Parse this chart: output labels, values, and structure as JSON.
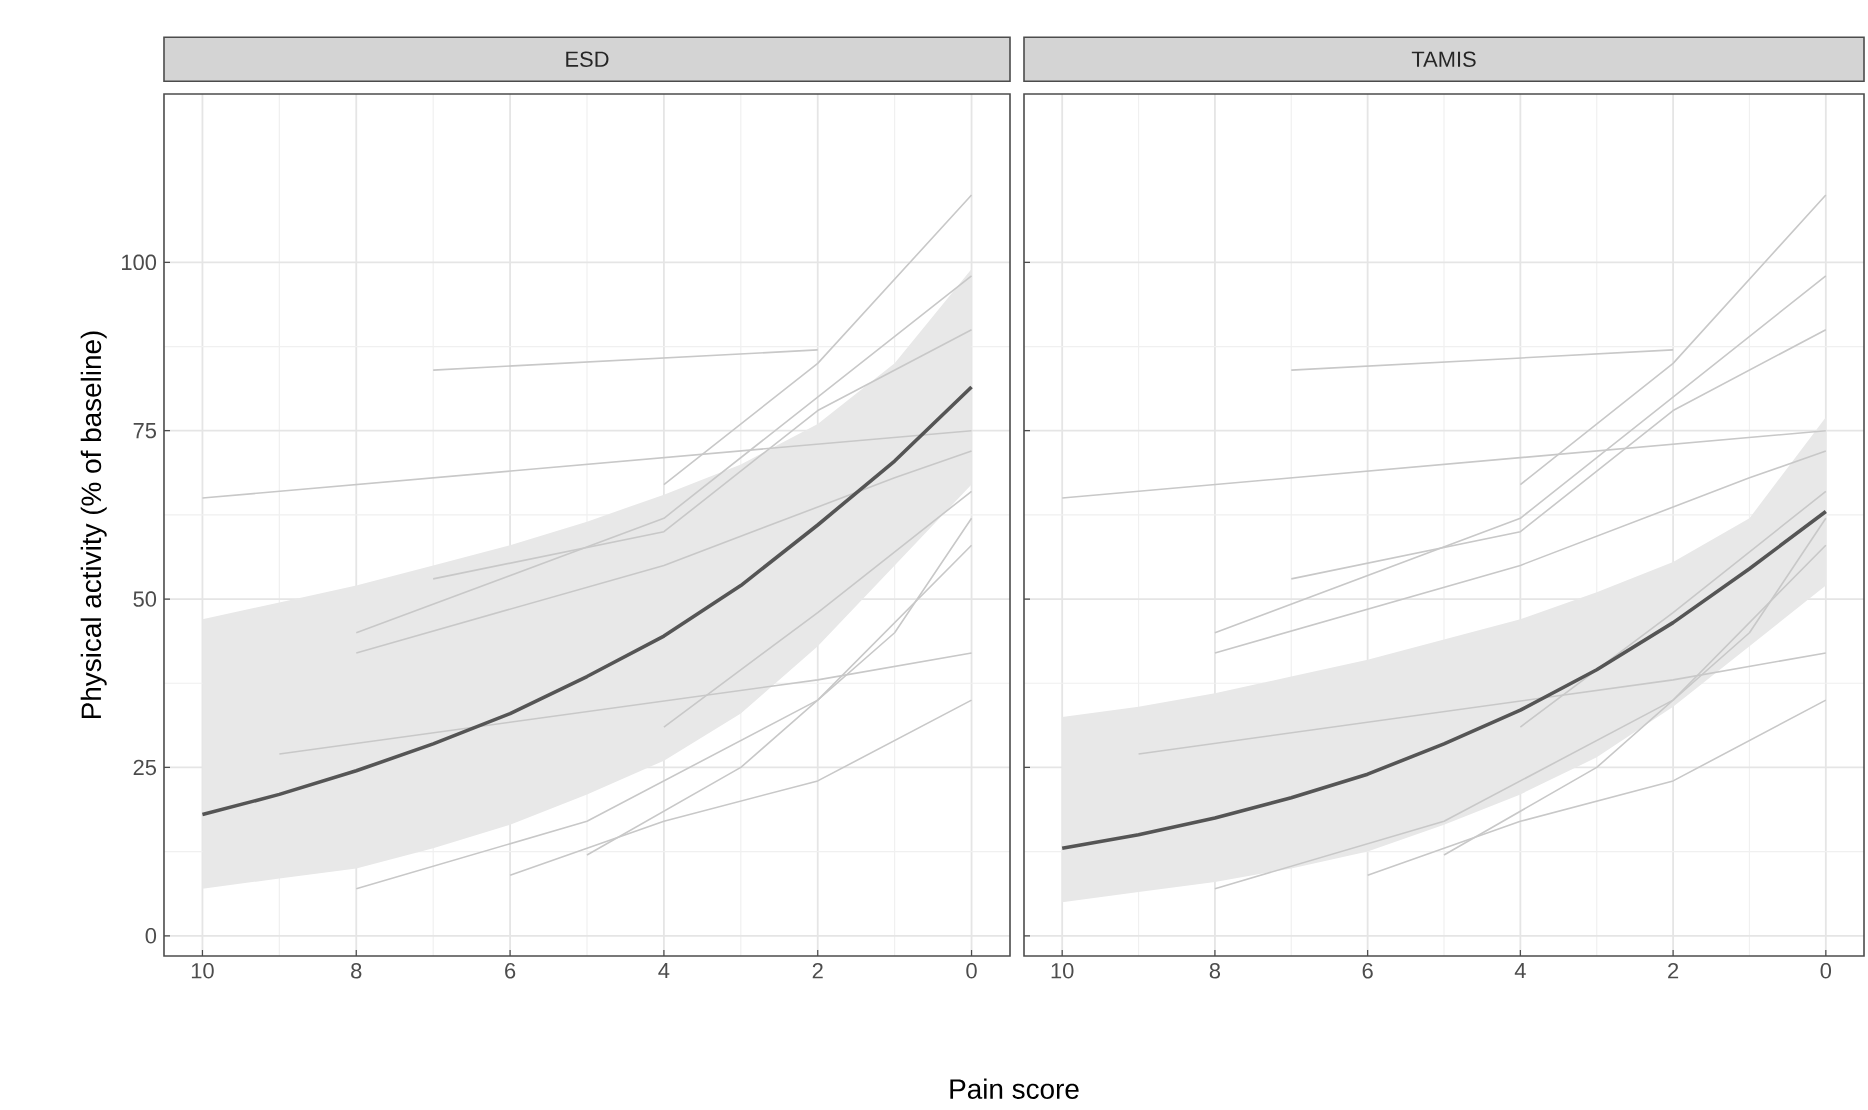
{
  "chart_data": [
    {
      "type": "line",
      "title": "ESD",
      "xlabel": "Pain score",
      "ylabel": "Physical activity (% of baseline)",
      "xlim": [
        10.5,
        -0.5
      ],
      "ylim": [
        -3,
        125
      ],
      "xticks": [
        10,
        8,
        6,
        4,
        2,
        0
      ],
      "yticks": [
        0,
        25,
        50,
        75,
        100
      ],
      "grid": true,
      "series": [
        {
          "color": "#c8c8c8",
          "x": [
            10,
            0
          ],
          "values": [
            65,
            75
          ]
        },
        {
          "color": "#c8c8c8",
          "x": [
            7,
            2
          ],
          "values": [
            84,
            87
          ]
        },
        {
          "color": "#c8c8c8",
          "x": [
            4,
            2,
            0
          ],
          "values": [
            67,
            85,
            110
          ]
        },
        {
          "color": "#c8c8c8",
          "x": [
            8,
            4,
            0
          ],
          "values": [
            45,
            62,
            98
          ]
        },
        {
          "color": "#c8c8c8",
          "x": [
            8,
            4,
            1,
            0
          ],
          "values": [
            42,
            55,
            68,
            72
          ]
        },
        {
          "color": "#c8c8c8",
          "x": [
            7,
            4,
            2,
            0
          ],
          "values": [
            53,
            60,
            78,
            90
          ]
        },
        {
          "color": "#c8c8c8",
          "x": [
            9,
            2,
            0
          ],
          "values": [
            27,
            38,
            42
          ]
        },
        {
          "color": "#c8c8c8",
          "x": [
            8,
            5,
            2,
            0
          ],
          "values": [
            7,
            17,
            35,
            58
          ]
        },
        {
          "color": "#c8c8c8",
          "x": [
            6,
            4,
            2,
            0
          ],
          "values": [
            9,
            17,
            23,
            35
          ]
        },
        {
          "color": "#c8c8c8",
          "x": [
            5,
            3,
            1,
            0
          ],
          "values": [
            12,
            25,
            45,
            62
          ]
        },
        {
          "color": "#c8c8c8",
          "x": [
            4,
            2,
            0
          ],
          "values": [
            31,
            48,
            66
          ]
        },
        {
          "color": "#555555",
          "x": [
            10,
            9,
            8,
            7,
            6,
            5,
            4,
            3,
            2,
            1,
            0
          ],
          "values": [
            18,
            21,
            24.5,
            28.5,
            33,
            38.5,
            44.5,
            52,
            61,
            70.5,
            81.5
          ],
          "lower": [
            7,
            8.5,
            10,
            13,
            16.5,
            21,
            26,
            33,
            43,
            55,
            67
          ],
          "upper": [
            47,
            49.5,
            52,
            55,
            58,
            61.5,
            65.5,
            70,
            76,
            85,
            99
          ]
        }
      ]
    },
    {
      "type": "line",
      "title": "TAMIS",
      "xlim": [
        10.5,
        -0.5
      ],
      "ylim": [
        -3,
        125
      ],
      "xticks": [
        10,
        8,
        6,
        4,
        2,
        0
      ],
      "yticks": [
        0,
        25,
        50,
        75,
        100
      ],
      "tick_labels": "x",
      "grid": true,
      "series": [
        {
          "color": "#c8c8c8",
          "x": [
            10,
            0
          ],
          "values": [
            65,
            75
          ]
        },
        {
          "color": "#c8c8c8",
          "x": [
            7,
            2
          ],
          "values": [
            84,
            87
          ]
        },
        {
          "color": "#c8c8c8",
          "x": [
            4,
            2,
            0
          ],
          "values": [
            67,
            85,
            110
          ]
        },
        {
          "color": "#c8c8c8",
          "x": [
            8,
            4,
            0
          ],
          "values": [
            45,
            62,
            98
          ]
        },
        {
          "color": "#c8c8c8",
          "x": [
            8,
            4,
            1,
            0
          ],
          "values": [
            42,
            55,
            68,
            72
          ]
        },
        {
          "color": "#c8c8c8",
          "x": [
            7,
            4,
            2,
            0
          ],
          "values": [
            53,
            60,
            78,
            90
          ]
        },
        {
          "color": "#c8c8c8",
          "x": [
            9,
            2,
            0
          ],
          "values": [
            27,
            38,
            42
          ]
        },
        {
          "color": "#c8c8c8",
          "x": [
            8,
            5,
            2,
            0
          ],
          "values": [
            7,
            17,
            35,
            58
          ]
        },
        {
          "color": "#c8c8c8",
          "x": [
            6,
            4,
            2,
            0
          ],
          "values": [
            9,
            17,
            23,
            35
          ]
        },
        {
          "color": "#c8c8c8",
          "x": [
            5,
            3,
            1,
            0
          ],
          "values": [
            12,
            25,
            45,
            62
          ]
        },
        {
          "color": "#c8c8c8",
          "x": [
            4,
            2,
            0
          ],
          "values": [
            31,
            48,
            66
          ]
        },
        {
          "color": "#555555",
          "x": [
            10,
            9,
            8,
            7,
            6,
            5,
            4,
            3,
            2,
            1,
            0
          ],
          "values": [
            13,
            15,
            17.5,
            20.5,
            24,
            28.5,
            33.5,
            39.5,
            46.5,
            54.5,
            63
          ],
          "lower": [
            5,
            6.5,
            8,
            10,
            12.5,
            16.5,
            21,
            26.5,
            34,
            43,
            52
          ],
          "upper": [
            32.5,
            34,
            36,
            38.5,
            41,
            44,
            47,
            51,
            55.5,
            62,
            77
          ]
        }
      ]
    }
  ]
}
